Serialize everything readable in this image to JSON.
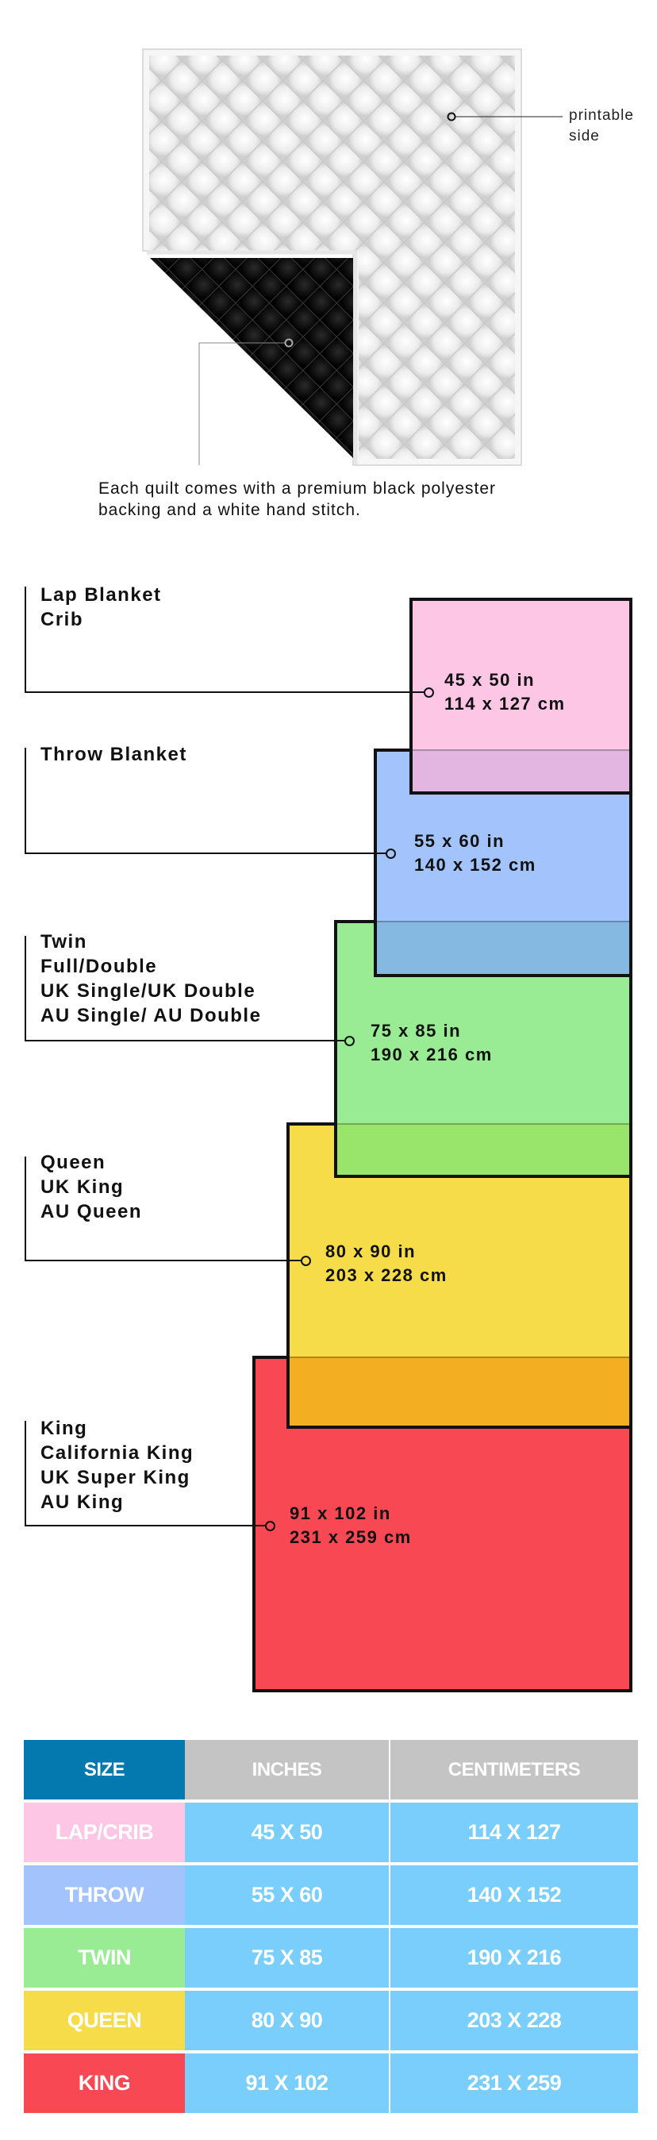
{
  "quilt": {
    "printable_label": [
      "printable",
      "side"
    ],
    "caption": [
      "Each quilt comes with a premium black polyester",
      "backing and a white hand stitch."
    ],
    "front_color": "#f4f4f4",
    "backing_color": "#0a0a0a"
  },
  "sizes": [
    {
      "labels": [
        "Lap Blanket",
        "Crib"
      ],
      "inches": "45 x 50 in",
      "cm": "114 x 127 cm",
      "color": "#fdc6e5"
    },
    {
      "labels": [
        "Throw Blanket"
      ],
      "inches": "55 x 60 in",
      "cm": "140 x 152 cm",
      "color": "#a3c3fc"
    },
    {
      "labels": [
        "Twin",
        "Full/Double",
        "UK Single/UK Double",
        "AU Single/ AU Double"
      ],
      "inches": "75 x 85 in",
      "cm": "190 x 216 cm",
      "color": "#99ec93"
    },
    {
      "labels": [
        "Queen",
        "UK King",
        "AU Queen"
      ],
      "inches": "80 x 90 in",
      "cm": "203 x 228 cm",
      "color": "#f7dc49"
    },
    {
      "labels": [
        "King",
        "California King",
        "UK Super King",
        "AU King"
      ],
      "inches": "91 x 102 in",
      "cm": "231 x 259 cm",
      "color": "#f84853"
    }
  ],
  "overlap_colors": [
    "#e3b6e1",
    "#86b9e1",
    "#99e56b",
    "#f4ae22"
  ],
  "table": {
    "headers": [
      "SIZE",
      "INCHES",
      "CENTIMETERS"
    ],
    "header_colors": [
      "#0479b0",
      "#c4c4c4",
      "#c4c4c4"
    ],
    "value_color": "#7acefb",
    "rows": [
      {
        "size": "LAP/CRIB",
        "inches": "45 X 50",
        "cm": "114 X 127",
        "color": "#fdc6e5"
      },
      {
        "size": "THROW",
        "inches": "55 X 60",
        "cm": "140 X 152",
        "color": "#a3c3fc"
      },
      {
        "size": "TWIN",
        "inches": "75 X 85",
        "cm": "190 X 216",
        "color": "#99ec93"
      },
      {
        "size": "QUEEN",
        "inches": "80 X 90",
        "cm": "203 X 228",
        "color": "#f7dc49"
      },
      {
        "size": "KING",
        "inches": "91 X 102",
        "cm": "231 X 259",
        "color": "#f84853"
      }
    ]
  }
}
